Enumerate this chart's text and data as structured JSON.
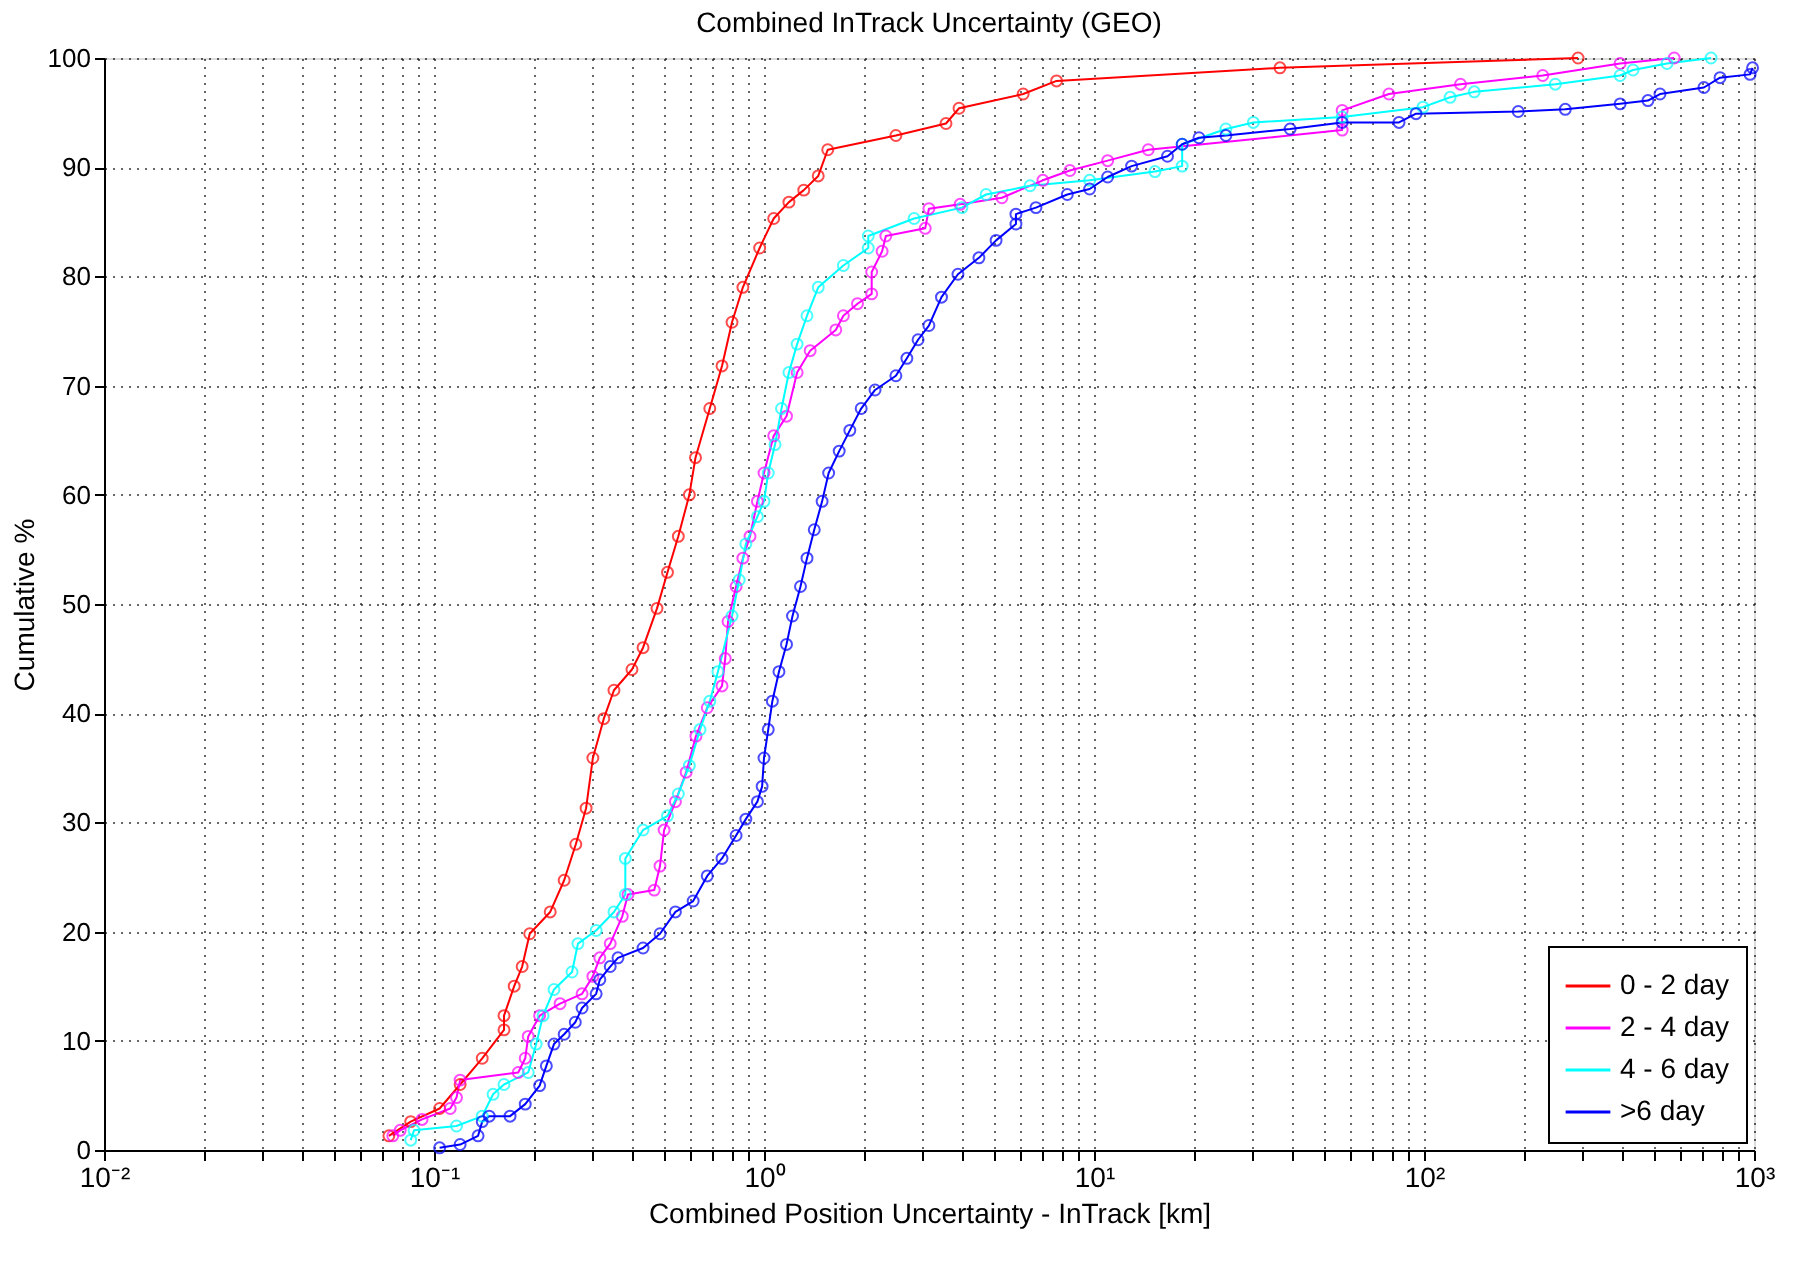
{
  "chart_data": {
    "type": "line",
    "title": "Combined InTrack Uncertainty (GEO)",
    "xlabel": "Combined Position Uncertainty - InTrack [km]",
    "ylabel": "Cumulative %",
    "log": "x",
    "grid": true,
    "legend": "bottom right",
    "marker": "circle",
    "line_style": "solid",
    "xlim": [
      0.01,
      1000
    ],
    "ylim": [
      0,
      100
    ],
    "xticks": [
      {
        "value": 0.01,
        "label": "10⁻²"
      },
      {
        "value": 0.02,
        "label": null
      },
      {
        "value": 0.03,
        "label": null
      },
      {
        "value": 0.04,
        "label": null
      },
      {
        "value": 0.05,
        "label": null
      },
      {
        "value": 0.06,
        "label": null
      },
      {
        "value": 0.07,
        "label": null
      },
      {
        "value": 0.08,
        "label": null
      },
      {
        "value": 0.09,
        "label": null
      },
      {
        "value": 0.1,
        "label": "10⁻¹"
      },
      {
        "value": 0.2,
        "label": null
      },
      {
        "value": 0.3,
        "label": null
      },
      {
        "value": 0.4,
        "label": null
      },
      {
        "value": 0.5,
        "label": null
      },
      {
        "value": 0.6,
        "label": null
      },
      {
        "value": 0.7,
        "label": null
      },
      {
        "value": 0.8,
        "label": null
      },
      {
        "value": 0.9,
        "label": null
      },
      {
        "value": 1,
        "label": "10⁰"
      },
      {
        "value": 2,
        "label": null
      },
      {
        "value": 3,
        "label": null
      },
      {
        "value": 4,
        "label": null
      },
      {
        "value": 5,
        "label": null
      },
      {
        "value": 6,
        "label": null
      },
      {
        "value": 7,
        "label": null
      },
      {
        "value": 8,
        "label": null
      },
      {
        "value": 9,
        "label": null
      },
      {
        "value": 10,
        "label": "10¹"
      },
      {
        "value": 20,
        "label": null
      },
      {
        "value": 30,
        "label": null
      },
      {
        "value": 40,
        "label": null
      },
      {
        "value": 50,
        "label": null
      },
      {
        "value": 60,
        "label": null
      },
      {
        "value": 70,
        "label": null
      },
      {
        "value": 80,
        "label": null
      },
      {
        "value": 90,
        "label": null
      },
      {
        "value": 100,
        "label": "10²"
      },
      {
        "value": 200,
        "label": null
      },
      {
        "value": 300,
        "label": null
      },
      {
        "value": 400,
        "label": null
      },
      {
        "value": 500,
        "label": null
      },
      {
        "value": 600,
        "label": null
      },
      {
        "value": 700,
        "label": null
      },
      {
        "value": 800,
        "label": null
      },
      {
        "value": 900,
        "label": null
      },
      {
        "value": 1000,
        "label": "10³"
      }
    ],
    "yticks": [
      0,
      10,
      20,
      30,
      40,
      50,
      60,
      70,
      80,
      90,
      100
    ],
    "series": [
      {
        "name": "0 - 2 day",
        "color": "#ff0000",
        "x": [
          0.073,
          0.085,
          0.104,
          0.12,
          0.14,
          0.163,
          0.163,
          0.175,
          0.185,
          0.195,
          0.225,
          0.248,
          0.269,
          0.289,
          0.303,
          0.327,
          0.351,
          0.398,
          0.43,
          0.474,
          0.51,
          0.55,
          0.594,
          0.62,
          0.685,
          0.746,
          0.8,
          0.863,
          0.97,
          1.07,
          1.19,
          1.32,
          1.46,
          1.56,
          2.51,
          3.56,
          3.9,
          6.1,
          7.7,
          36.6,
          293
        ],
        "values": [
          1.3,
          2.6,
          3.8,
          6,
          8.4,
          11,
          12.3,
          15,
          16.8,
          19.8,
          21.8,
          24.7,
          28,
          31.3,
          35.9,
          39.5,
          42.1,
          44,
          46,
          49.6,
          52.9,
          56.2,
          60,
          63.4,
          67.9,
          71.8,
          75.8,
          79,
          82.6,
          85.3,
          86.8,
          87.9,
          89.2,
          91.6,
          92.9,
          94,
          95.4,
          96.7,
          97.9,
          99.1,
          100
        ]
      },
      {
        "name": "2 - 4 day",
        "color": "#ff00ff",
        "x": [
          0.075,
          0.079,
          0.092,
          0.112,
          0.117,
          0.12,
          0.18,
          0.189,
          0.193,
          0.209,
          0.241,
          0.281,
          0.303,
          0.318,
          0.342,
          0.372,
          0.387,
          0.465,
          0.484,
          0.498,
          0.539,
          0.581,
          0.622,
          0.673,
          0.746,
          0.763,
          0.778,
          0.823,
          0.863,
          0.907,
          0.955,
          1.0,
          1.07,
          1.17,
          1.26,
          1.38,
          1.65,
          1.74,
          1.92,
          2.12,
          2.12,
          2.28,
          2.34,
          3.08,
          3.16,
          3.93,
          5.26,
          7.0,
          8.45,
          11,
          14.6,
          56.5,
          56.5,
          78.3,
          129,
          229,
          393,
          573
        ],
        "values": [
          1.3,
          1.8,
          2.8,
          3.8,
          4.8,
          6.4,
          7.1,
          8.4,
          10.4,
          12.3,
          13.4,
          14.3,
          15.9,
          17.6,
          18.9,
          21.4,
          23.4,
          23.8,
          26,
          29.3,
          31.9,
          34.6,
          37.9,
          40.5,
          42.5,
          45,
          48.4,
          51.6,
          54.2,
          56.2,
          59.4,
          62,
          65.4,
          67.2,
          71.2,
          73.2,
          75.1,
          76.4,
          77.5,
          78.4,
          80.4,
          82.3,
          83.7,
          84.4,
          86.2,
          86.6,
          87.2,
          88.8,
          89.7,
          90.6,
          91.6,
          93.4,
          95.2,
          96.7,
          97.6,
          98.4,
          99.5,
          100
        ]
      },
      {
        "name": "4 - 6 day",
        "color": "#00ffff",
        "x": [
          0.085,
          0.087,
          0.117,
          0.14,
          0.151,
          0.163,
          0.193,
          0.204,
          0.214,
          0.231,
          0.262,
          0.273,
          0.31,
          0.351,
          0.38,
          0.38,
          0.43,
          0.51,
          0.55,
          0.594,
          0.64,
          0.685,
          0.725,
          0.8,
          0.841,
          0.881,
          0.955,
          1.0,
          1.03,
          1.08,
          1.13,
          1.19,
          1.26,
          1.35,
          1.46,
          1.74,
          2.07,
          2.07,
          2.85,
          3.98,
          4.71,
          6.4,
          9.7,
          15.3,
          18.5,
          18.5,
          25.1,
          30.4,
          56.5,
          99.3,
          120,
          142,
          250,
          393,
          430,
          545,
          741
        ],
        "values": [
          0.9,
          1.8,
          2.2,
          3.1,
          5.1,
          6,
          7.1,
          9.7,
          12.3,
          14.7,
          16.3,
          18.9,
          20.1,
          21.8,
          23.4,
          26.7,
          29.3,
          30.6,
          32.6,
          35.2,
          38.5,
          41.1,
          43.8,
          48.9,
          52.2,
          55.5,
          58,
          59.4,
          62,
          64.6,
          67.9,
          71.2,
          73.8,
          76.4,
          79,
          81,
          82.6,
          83.7,
          85.3,
          86.3,
          87.5,
          88.3,
          88.8,
          89.6,
          90.1,
          92.1,
          93.5,
          94.1,
          94.6,
          95.5,
          96.4,
          96.9,
          97.6,
          98.4,
          98.9,
          99.5,
          100
        ]
      },
      {
        "name": ">6 day",
        "color": "#0000ff",
        "x": [
          0.104,
          0.12,
          0.136,
          0.14,
          0.147,
          0.17,
          0.189,
          0.209,
          0.219,
          0.231,
          0.248,
          0.268,
          0.281,
          0.31,
          0.318,
          0.342,
          0.361,
          0.43,
          0.484,
          0.539,
          0.61,
          0.673,
          0.746,
          0.823,
          0.881,
          0.955,
          0.987,
          1.0,
          1.03,
          1.06,
          1.11,
          1.17,
          1.22,
          1.29,
          1.35,
          1.42,
          1.5,
          1.57,
          1.69,
          1.82,
          1.97,
          2.17,
          2.51,
          2.71,
          2.93,
          3.16,
          3.45,
          3.87,
          4.48,
          5.05,
          5.8,
          5.8,
          6.67,
          8.3,
          9.7,
          11,
          13,
          16.7,
          18.5,
          20.8,
          25.1,
          39.3,
          56.5,
          84,
          94.6,
          193,
          268,
          393,
          477,
          519,
          705,
          789,
          973,
          990
        ],
        "values": [
          0.2,
          0.5,
          1.3,
          2.6,
          3.1,
          3.1,
          4.2,
          5.9,
          7.7,
          9.7,
          10.6,
          11.7,
          13,
          14.3,
          15.6,
          16.8,
          17.6,
          18.5,
          19.8,
          21.8,
          22.8,
          25.1,
          26.7,
          28.8,
          30.3,
          31.9,
          33.3,
          35.9,
          38.5,
          41.1,
          43.8,
          46.3,
          48.9,
          51.6,
          54.2,
          56.8,
          59.4,
          62,
          64,
          65.9,
          67.9,
          69.6,
          70.9,
          72.5,
          74.2,
          75.5,
          78.1,
          80.2,
          81.7,
          83.3,
          84.8,
          85.7,
          86.3,
          87.5,
          88,
          89.1,
          90.1,
          91,
          92.1,
          92.7,
          92.9,
          93.5,
          94.1,
          94.1,
          94.9,
          95.1,
          95.3,
          95.8,
          96.1,
          96.7,
          97.3,
          98.2,
          98.5,
          99.1
        ]
      }
    ]
  }
}
